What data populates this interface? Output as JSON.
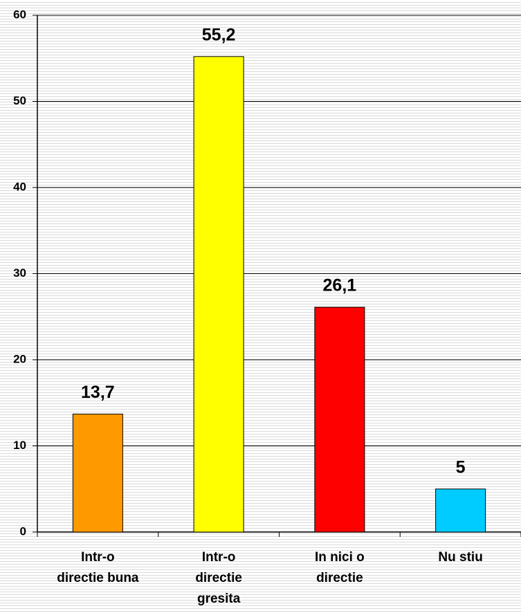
{
  "chart_data": {
    "type": "bar",
    "categories": [
      [
        "Intr-o",
        "directie buna"
      ],
      [
        "Intr-o",
        "directie",
        "gresita"
      ],
      [
        "In nici o",
        "directie"
      ],
      [
        "Nu stiu"
      ]
    ],
    "values": [
      13.7,
      55.2,
      26.1,
      5
    ],
    "value_labels": [
      "13,7",
      "55,2",
      "26,1",
      "5"
    ],
    "colors": [
      "#ff9900",
      "#ffff00",
      "#ff0000",
      "#00ccff"
    ],
    "ylim": [
      0,
      60
    ],
    "yticks": [
      0,
      10,
      20,
      30,
      40,
      50,
      60
    ],
    "grid": true
  }
}
